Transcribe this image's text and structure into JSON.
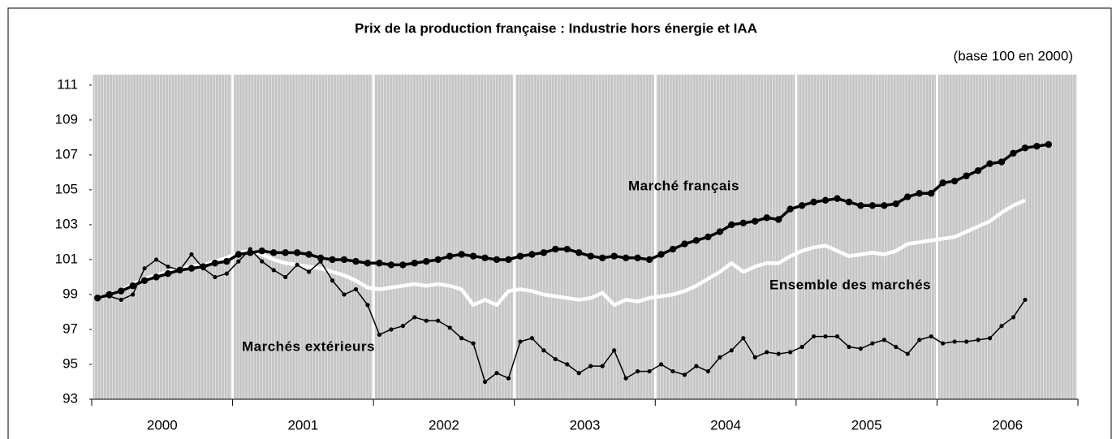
{
  "chart_data": {
    "type": "line",
    "title": "Prix de la production française : Industrie hors énergie et IAA",
    "subtitle": "(base 100 en 2000)",
    "annotations": [
      "Marché français",
      "Ensemble des marchés",
      "Marchés extérieurs"
    ],
    "categories": [
      null,
      null,
      null,
      null,
      null,
      null,
      "2000",
      null,
      null,
      null,
      null,
      null,
      null,
      null,
      null,
      null,
      null,
      null,
      "2001",
      null,
      null,
      null,
      null,
      null,
      null,
      null,
      null,
      null,
      null,
      null,
      "2002",
      null,
      null,
      null,
      null,
      null,
      null,
      null,
      null,
      null,
      null,
      null,
      "2003",
      null,
      null,
      null,
      null,
      null,
      null,
      null,
      null,
      null,
      null,
      null,
      "2004",
      null,
      null,
      null,
      null,
      null,
      null,
      null,
      null,
      null,
      null,
      null,
      "2005",
      null,
      null,
      null,
      null,
      null,
      null,
      null,
      null,
      null,
      null,
      null,
      "2006",
      null,
      null,
      null,
      null,
      null
    ],
    "series": [
      {
        "name": "Marché français",
        "color": "#000000",
        "values": [
          98.8,
          99.0,
          99.2,
          99.5,
          99.8,
          100.0,
          100.2,
          100.4,
          100.5,
          100.6,
          100.8,
          100.9,
          101.3,
          101.4,
          101.5,
          101.4,
          101.4,
          101.4,
          101.3,
          101.1,
          101.0,
          101.0,
          100.9,
          100.8,
          100.8,
          100.7,
          100.7,
          100.8,
          100.9,
          101.0,
          101.2,
          101.3,
          101.2,
          101.1,
          101.0,
          101.0,
          101.2,
          101.3,
          101.4,
          101.6,
          101.6,
          101.4,
          101.2,
          101.1,
          101.2,
          101.1,
          101.1,
          101.0,
          101.3,
          101.6,
          101.9,
          102.1,
          102.3,
          102.6,
          103.0,
          103.1,
          103.2,
          103.4,
          103.3,
          103.9,
          104.1,
          104.3,
          104.4,
          104.5,
          104.3,
          104.1,
          104.1,
          104.1,
          104.2,
          104.6,
          104.8,
          104.8,
          105.4,
          105.5,
          105.8,
          106.1,
          106.5,
          106.6,
          107.1,
          107.4,
          107.5,
          107.6,
          null,
          null
        ]
      },
      {
        "name": "Ensemble des marchés",
        "color": "#ffffff",
        "values": [
          98.8,
          99.0,
          99.2,
          99.6,
          99.9,
          100.1,
          100.3,
          100.5,
          100.6,
          100.7,
          100.9,
          101.1,
          101.4,
          101.5,
          101.3,
          101.0,
          100.8,
          100.7,
          100.6,
          100.5,
          100.3,
          100.1,
          99.8,
          99.4,
          99.3,
          99.4,
          99.5,
          99.6,
          99.5,
          99.6,
          99.5,
          99.3,
          98.4,
          98.7,
          98.4,
          99.2,
          99.3,
          99.2,
          99.0,
          98.9,
          98.8,
          98.7,
          98.8,
          99.1,
          98.4,
          98.7,
          98.6,
          98.8,
          98.9,
          99.0,
          99.2,
          99.5,
          99.9,
          100.3,
          100.8,
          100.3,
          100.6,
          100.8,
          100.8,
          101.2,
          101.5,
          101.7,
          101.8,
          101.5,
          101.2,
          101.3,
          101.4,
          101.3,
          101.5,
          101.9,
          102.0,
          102.1,
          102.2,
          102.3,
          102.6,
          102.9,
          103.2,
          103.7,
          104.1,
          104.4,
          null,
          null,
          null,
          null
        ]
      },
      {
        "name": "Marchés extérieurs",
        "color": "#000000",
        "values": [
          98.8,
          98.9,
          98.7,
          99.0,
          100.5,
          101.0,
          100.6,
          100.4,
          101.3,
          100.5,
          100.0,
          100.2,
          100.9,
          101.6,
          100.9,
          100.4,
          100.0,
          100.7,
          100.3,
          100.9,
          99.8,
          99.0,
          99.3,
          98.4,
          96.7,
          97.0,
          97.2,
          97.7,
          97.5,
          97.5,
          97.1,
          96.5,
          96.2,
          94.0,
          94.5,
          94.2,
          96.3,
          96.5,
          95.8,
          95.3,
          95.0,
          94.5,
          94.9,
          94.9,
          95.8,
          94.2,
          94.6,
          94.6,
          95.0,
          94.6,
          94.4,
          94.9,
          94.6,
          95.4,
          95.8,
          96.5,
          95.4,
          95.7,
          95.6,
          95.7,
          96.0,
          96.6,
          96.6,
          96.6,
          96.0,
          95.9,
          96.2,
          96.4,
          96.0,
          95.6,
          96.4,
          96.6,
          96.2,
          96.3,
          96.3,
          96.4,
          96.5,
          97.2,
          97.7,
          98.7,
          null,
          null,
          null,
          null
        ]
      }
    ],
    "ylim": [
      93,
      111.6
    ],
    "yticks": [
      93,
      95,
      97,
      99,
      101,
      103,
      105,
      107,
      109,
      111
    ]
  }
}
